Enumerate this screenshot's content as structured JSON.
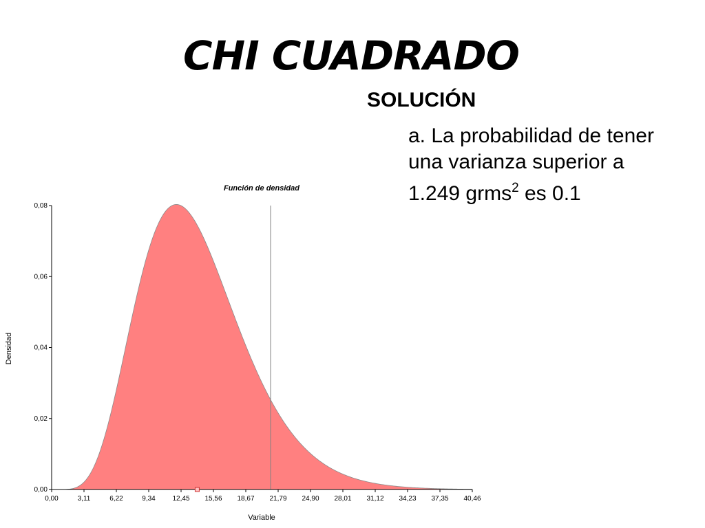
{
  "header": {
    "title": "CHI CUADRADO",
    "subtitle": "SOLUCIÓN"
  },
  "answer": {
    "line1": "a. La probabilidad de tener",
    "line2": "una varianza superior a",
    "line3_pre": "1.249 grms",
    "line3_sup": "2",
    "line3_post": " es 0.1"
  },
  "chart_data": {
    "type": "area",
    "title": "Función de densidad",
    "xlabel": "Variable",
    "ylabel": "Densidad",
    "xlim": [
      0,
      40.46
    ],
    "ylim": [
      0,
      0.08
    ],
    "x_ticks": [
      "0,00",
      "3,11",
      "6,22",
      "9,34",
      "12,45",
      "15,56",
      "18,67",
      "21,79",
      "24,90",
      "28,01",
      "31,12",
      "34,23",
      "37,35",
      "40,46"
    ],
    "y_ticks": [
      "0,00",
      "0,02",
      "0,04",
      "0,06",
      "0,08"
    ],
    "distribution": "chi-square",
    "degrees_of_freedom": 14,
    "fill_color": "#ff8080",
    "line_color": "#8b8b8b",
    "critical_value": 21.06,
    "critical_line_color": "#808080",
    "marker_x": 14.0,
    "grid": false
  }
}
